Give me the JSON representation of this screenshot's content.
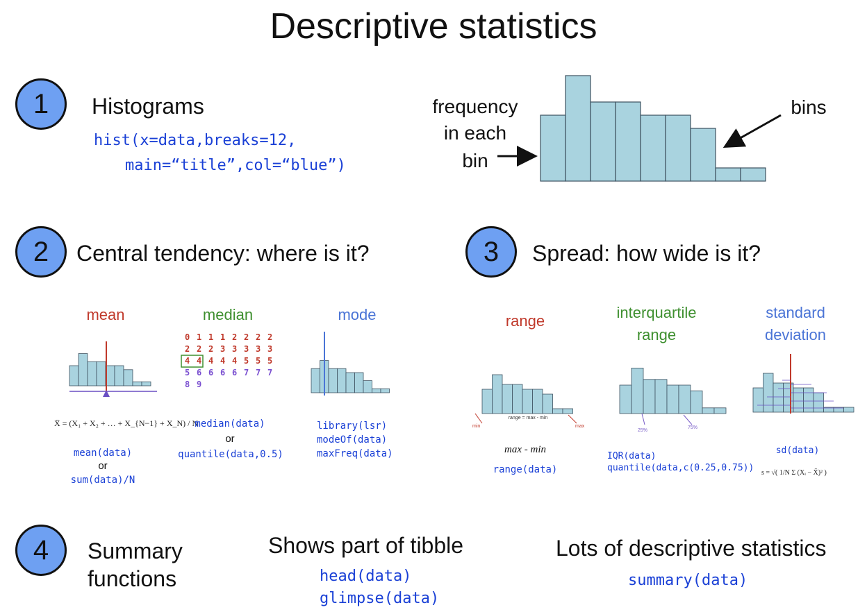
{
  "title": "Descriptive statistics",
  "sections": [
    {
      "number": "1",
      "heading": "Histograms"
    },
    {
      "number": "2",
      "heading": "Central tendency: where is it?"
    },
    {
      "number": "3",
      "heading": "Spread: how wide is it?"
    },
    {
      "number": "4",
      "heading": "Summary functions"
    }
  ],
  "histogram": {
    "code_line1": "hist(x=data,breaks=12,",
    "code_line2": "main=“title”,col=“blue”)",
    "label_freq_1": "frequency",
    "label_freq_2": "in each",
    "label_freq_3": "bin",
    "label_bins": "bins",
    "bar_values": [
      5,
      8,
      6,
      6,
      5,
      5,
      4,
      1,
      1
    ],
    "bar_color": "#a9d3df"
  },
  "central": {
    "mean": {
      "label": "mean",
      "color": "#c0392b",
      "formula": "X̄ = (X₁ + X₂ + … + X_{N−1} + X_N) / N",
      "code1": "mean(data)",
      "or": "or",
      "code2": "sum(data)/N"
    },
    "median": {
      "label": "median",
      "color": "#3e8f2f",
      "code1": "median(data)",
      "or": "or",
      "code2": "quantile(data,0.5)",
      "rows": [
        [
          "0",
          "1",
          "1",
          "1",
          "2",
          "2",
          "2",
          "2"
        ],
        [
          "2",
          "2",
          "2",
          "3",
          "3",
          "3",
          "3",
          "3"
        ],
        [
          "4",
          "4",
          "4",
          "4",
          "4",
          "5",
          "5",
          "5"
        ],
        [
          "5",
          "6",
          "6",
          "6",
          "6",
          "7",
          "7",
          "7"
        ],
        [
          "8",
          "9"
        ]
      ]
    },
    "mode": {
      "label": "mode",
      "color": "#4a74d6",
      "code1": "library(lsr)",
      "code2": "modeOf(data)",
      "code3": "maxFreq(data)"
    }
  },
  "spread": {
    "range": {
      "label": "range",
      "color": "#c0392b",
      "eq": "range = max - min",
      "min": "min",
      "max": "max",
      "formula": "max - min",
      "code": "range(data)"
    },
    "iqr": {
      "label1": "interquartile",
      "label2": "range",
      "color": "#3e8f2f",
      "p25": "25%",
      "p75": "75%",
      "code1": "IQR(data)",
      "code2": "quantile(data,c(0.25,0.75))"
    },
    "sd": {
      "label1": "standard",
      "label2": "deviation",
      "color": "#4a74d6",
      "code": "sd(data)",
      "formula": "s = √( 1/N Σ (Xᵢ − X̄)² )"
    }
  },
  "summary": {
    "label1": "Summary",
    "label2": "functions",
    "tibble_heading": "Shows part of tibble",
    "tibble_code1": "head(data)",
    "tibble_code2": "glimpse(data)",
    "stats_heading": "Lots of descriptive statistics",
    "stats_code": "summary(data)"
  }
}
